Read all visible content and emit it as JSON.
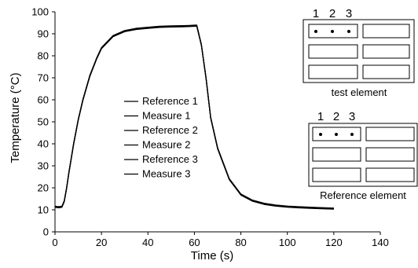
{
  "chart_data": {
    "type": "line",
    "title": "",
    "xlabel": "Time (s)",
    "ylabel": "Temperature (°C)",
    "xlim": [
      0,
      140
    ],
    "ylim": [
      0,
      100
    ],
    "xticks": [
      0,
      20,
      40,
      60,
      80,
      100,
      120,
      140
    ],
    "yticks": [
      0,
      10,
      20,
      30,
      40,
      50,
      60,
      70,
      80,
      90,
      100
    ],
    "grid": false,
    "legend_position": "center-left",
    "series": [
      {
        "name": "Reference 1",
        "color": "#000000"
      },
      {
        "name": "Measure 1",
        "color": "#000000"
      },
      {
        "name": "Reference 2",
        "color": "#000000"
      },
      {
        "name": "Measure 2",
        "color": "#000000"
      },
      {
        "name": "Reference 3",
        "color": "#000000"
      },
      {
        "name": "Measure 3",
        "color": "#000000"
      }
    ],
    "x": [
      0,
      1,
      2,
      3,
      4,
      5,
      6,
      8,
      10,
      12,
      15,
      18,
      20,
      25,
      30,
      35,
      40,
      45,
      50,
      55,
      58,
      60,
      61,
      63,
      65,
      67,
      70,
      75,
      80,
      85,
      90,
      95,
      100,
      105,
      110,
      115,
      120
    ],
    "values": [
      11.5,
      11.3,
      11.3,
      11.5,
      14,
      20,
      27,
      40,
      51,
      60,
      71,
      79,
      83.5,
      89,
      91.3,
      92.3,
      92.8,
      93.2,
      93.4,
      93.5,
      93.6,
      93.7,
      93.8,
      85,
      70,
      52,
      38,
      24,
      17,
      14.2,
      12.8,
      12,
      11.5,
      11.2,
      11,
      10.8,
      10.6
    ],
    "diagrams": [
      {
        "caption": "test element",
        "numbers": [
          "1",
          "2",
          "3"
        ]
      },
      {
        "caption": "Reference element",
        "numbers": [
          "1",
          "2",
          "3"
        ]
      }
    ]
  }
}
